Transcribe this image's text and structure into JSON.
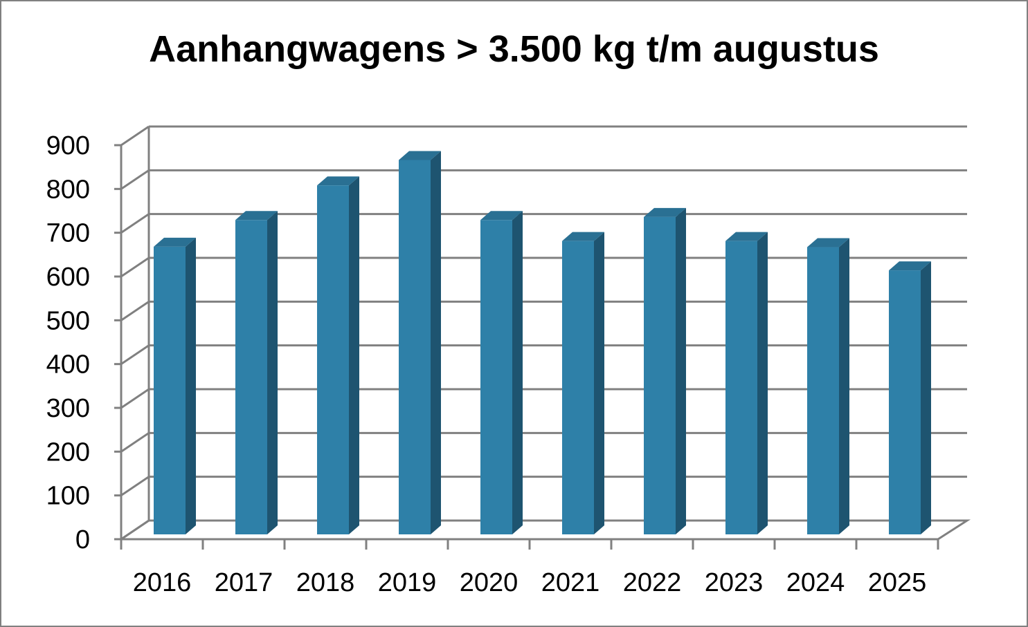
{
  "chart_data": {
    "type": "bar",
    "title": "Aanhangwagens > 3.500 kg t/m augustus",
    "categories": [
      "2016",
      "2017",
      "2018",
      "2019",
      "2020",
      "2021",
      "2022",
      "2023",
      "2024",
      "2025"
    ],
    "values": [
      657,
      718,
      797,
      855,
      718,
      670,
      725,
      670,
      656,
      603
    ],
    "ylim": [
      0,
      900
    ],
    "yticks": [
      "0",
      "100",
      "200",
      "300",
      "400",
      "500",
      "600",
      "700",
      "800",
      "900"
    ],
    "xlabel": "",
    "ylabel": "",
    "grid": true,
    "legend": "none",
    "bar_color_front": "#2e80a8",
    "bar_color_side": "#1e5470",
    "bar_color_top": "#2a7093",
    "grid_color": "#808080"
  }
}
